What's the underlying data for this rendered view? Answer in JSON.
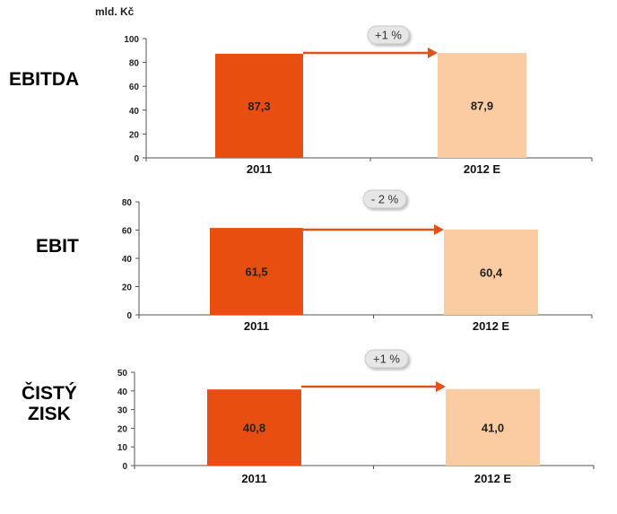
{
  "unit_label": "mld. Kč",
  "colors": {
    "bar_2011": "#E84E0F",
    "bar_2012": "#FBCBA2",
    "arrow": "#E0521A",
    "badge_fill": "#E6E6E6",
    "badge_stroke": "#C8C8C8",
    "axis": "#555555"
  },
  "chart_data": [
    {
      "type": "bar",
      "label": "EBITDA",
      "categories": [
        "2011",
        "2012 E"
      ],
      "values": [
        87.3,
        87.9
      ],
      "value_labels": [
        "87,3",
        "87,9"
      ],
      "change_label": "+1 %",
      "yticks": [
        0,
        20,
        40,
        60,
        80,
        100
      ],
      "ylim": [
        0,
        100
      ],
      "grid": false
    },
    {
      "type": "bar",
      "label": "EBIT",
      "categories": [
        "2011",
        "2012 E"
      ],
      "values": [
        61.5,
        60.4
      ],
      "value_labels": [
        "61,5",
        "60,4"
      ],
      "change_label": "- 2 %",
      "yticks": [
        0,
        20,
        40,
        60,
        80
      ],
      "ylim": [
        0,
        80
      ],
      "grid": false
    },
    {
      "type": "bar",
      "label": "ČISTÝ ZISK",
      "label_lines": [
        "ČISTÝ",
        "ZISK"
      ],
      "categories": [
        "2011",
        "2012 E"
      ],
      "values": [
        40.8,
        41.0
      ],
      "value_labels": [
        "40,8",
        "41,0"
      ],
      "change_label": "+1 %",
      "yticks": [
        0,
        10,
        20,
        30,
        40,
        50
      ],
      "ylim": [
        0,
        50
      ],
      "grid": false
    }
  ]
}
